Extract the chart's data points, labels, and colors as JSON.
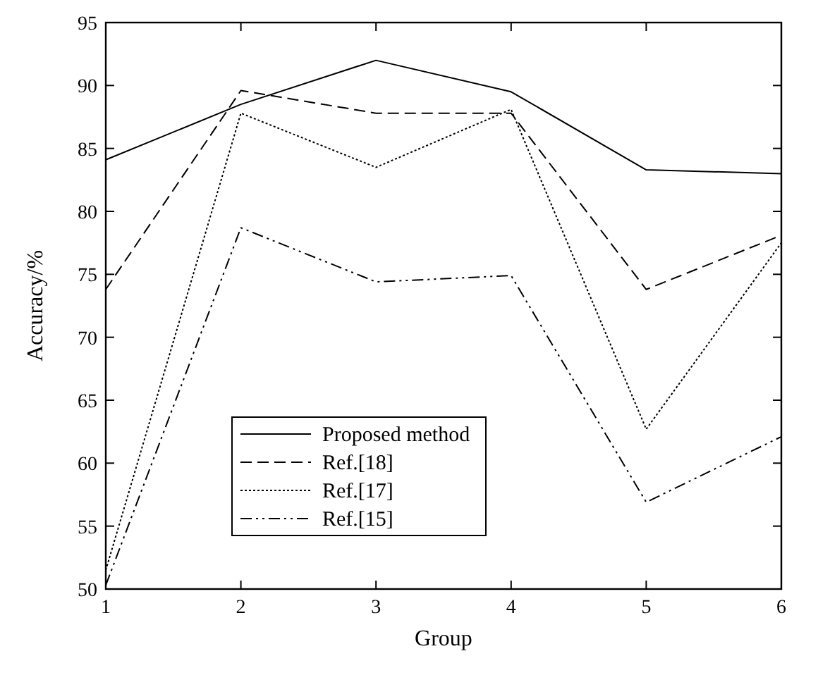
{
  "chart_data": {
    "type": "line",
    "xlabel": "Group",
    "ylabel": "Accuracy/%",
    "x": [
      1,
      2,
      3,
      4,
      5,
      6
    ],
    "xlim": [
      1,
      6
    ],
    "xticks": [
      1,
      2,
      3,
      4,
      5,
      6
    ],
    "ylim": [
      50,
      95
    ],
    "yticks": [
      50,
      55,
      60,
      65,
      70,
      75,
      80,
      85,
      90,
      95
    ],
    "grid": false,
    "legend": "bottom",
    "marker": "none",
    "series": [
      {
        "name": "Proposed method",
        "color": "#000000",
        "line_style": "solid",
        "values": [
          84.1,
          88.5,
          92.0,
          89.5,
          83.3,
          83.0
        ]
      },
      {
        "name": "Ref.[18]",
        "color": "#000000",
        "line_style": "dashed",
        "values": [
          73.8,
          89.6,
          87.8,
          87.8,
          73.8,
          78.1
        ]
      },
      {
        "name": "Ref.[17]",
        "color": "#000000",
        "line_style": "dotted",
        "values": [
          51.5,
          87.8,
          83.5,
          88.1,
          62.7,
          77.5
        ]
      },
      {
        "name": "Ref.[15]",
        "color": "#000000",
        "line_style": "dashdot",
        "values": [
          50.3,
          78.7,
          74.4,
          74.9,
          56.9,
          62.1
        ]
      }
    ]
  }
}
